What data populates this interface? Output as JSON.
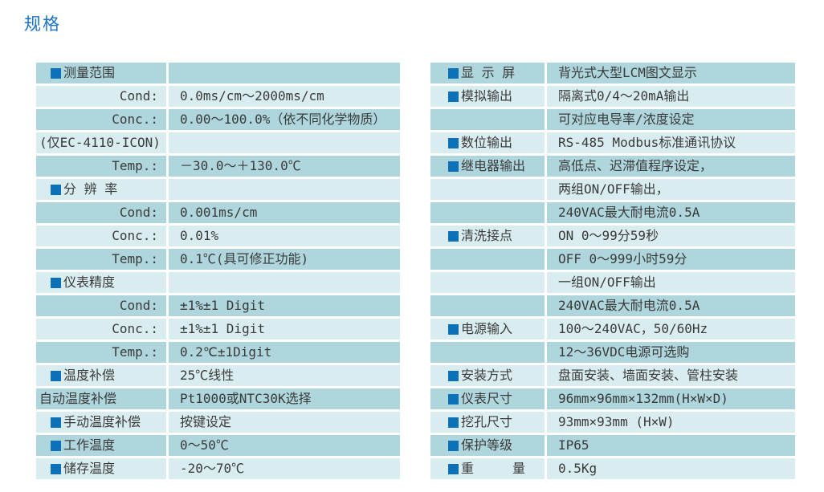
{
  "page": {
    "title": "规格"
  },
  "colors": {
    "title_blue": "#1b74c4",
    "bullet_blue": "#0d71b8",
    "row_dark": "#aed6dc",
    "row_light": "#d9edf0",
    "text": "#3a3a3a"
  },
  "tables": {
    "left": {
      "rows": [
        {
          "t": "bullet",
          "label": "测量范围",
          "value": ""
        },
        {
          "t": "sub",
          "label": "Cond:",
          "value": "0.0ms/cm～2000ms/cm"
        },
        {
          "t": "sub",
          "label": "Conc.:",
          "value": "0.00～100.0%（依不同化学物质）"
        },
        {
          "t": "plain",
          "label": "(仅EC-4110-ICON)",
          "value": ""
        },
        {
          "t": "sub",
          "label": "Temp.:",
          "value": "－30.0～＋130.0℃"
        },
        {
          "t": "bullet",
          "label": "分 辨 率",
          "value": ""
        },
        {
          "t": "sub",
          "label": "Cond:",
          "value": "0.001ms/cm"
        },
        {
          "t": "sub",
          "label": "Conc.:",
          "value": "0.01%"
        },
        {
          "t": "sub",
          "label": "Temp.:",
          "value": "0.1℃(具可修正功能)"
        },
        {
          "t": "bullet",
          "label": "仪表精度",
          "value": ""
        },
        {
          "t": "sub",
          "label": "Cond:",
          "value": "±1%±1 Digit"
        },
        {
          "t": "sub",
          "label": "Conc.:",
          "value": "±1%±1 Digit"
        },
        {
          "t": "sub",
          "label": "Temp.:",
          "value": "0.2℃±1Digit"
        },
        {
          "t": "bullet",
          "label": "温度补偿",
          "value": "25℃线性"
        },
        {
          "t": "plain",
          "label": "自动温度补偿",
          "value": "Pt1000或NTC30K选择"
        },
        {
          "t": "bullet",
          "label": "手动温度补偿",
          "value": "按键设定"
        },
        {
          "t": "bullet",
          "label": "工作温度",
          "value": "0～50℃"
        },
        {
          "t": "bullet",
          "label": "储存温度",
          "value": "-20～70℃"
        }
      ]
    },
    "right": {
      "rows": [
        {
          "t": "bullet",
          "label": "显 示 屏",
          "value": "背光式大型LCM图文显示"
        },
        {
          "t": "bullet",
          "label": "模拟输出",
          "value": "隔离式0/4～20mA输出"
        },
        {
          "t": "plain",
          "label": "",
          "value": "可对应电导率/浓度设定"
        },
        {
          "t": "bullet",
          "label": "数位输出",
          "value": "RS-485 Modbus标准通讯协议"
        },
        {
          "t": "bullet",
          "label": "继电器输出",
          "value": "高低点、迟滞值程序设定，"
        },
        {
          "t": "plain",
          "label": "",
          "value": "两组ON/OFF输出，"
        },
        {
          "t": "plain",
          "label": "",
          "value": "240VAC最大耐电流0.5A"
        },
        {
          "t": "bullet",
          "label": "清洗接点",
          "value": "ON 0～99分59秒"
        },
        {
          "t": "plain",
          "label": "",
          "value": "OFF 0～999小时59分"
        },
        {
          "t": "plain",
          "label": "",
          "value": "一组ON/OFF输出"
        },
        {
          "t": "plain",
          "label": "",
          "value": "240VAC最大耐电流0.5A"
        },
        {
          "t": "bullet",
          "label": "电源输入",
          "value": "100～240VAC，50/60Hz"
        },
        {
          "t": "plain",
          "label": "",
          "value": "12～36VDC电源可选购"
        },
        {
          "t": "bullet",
          "label": "安装方式",
          "value": "盘面安装、墙面安装、管柱安装"
        },
        {
          "t": "bullet",
          "label": "仪表尺寸",
          "value": "96mm×96mm×132mm(H×W×D)"
        },
        {
          "t": "bullet",
          "label": "挖孔尺寸",
          "value": "93mm×93mm (H×W)"
        },
        {
          "t": "bullet",
          "label": "保护等级",
          "value": "IP65"
        },
        {
          "t": "bullet",
          "label": "重　　　量",
          "value": "0.5Kg"
        }
      ]
    }
  }
}
